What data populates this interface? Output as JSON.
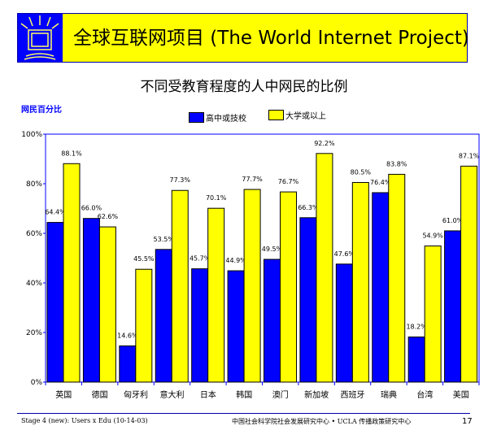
{
  "header": {
    "title": "全球互联网项目 (The World Internet Project)",
    "logo": "monitor-logo"
  },
  "footer": {
    "left": "Stage 4 (new): Users x Edu (10-14-03)",
    "center": "中国社会科学院社会发展研究中心 • UCLA 传播政策研究中心",
    "page": "17"
  },
  "chart_data": {
    "type": "bar",
    "title": "不同受教育程度的人中网民的比例",
    "ylabel": "网民百分比",
    "ylim": [
      0,
      100
    ],
    "yticks": [
      "0%",
      "20%",
      "40%",
      "60%",
      "80%",
      "100%"
    ],
    "legend_placement": "top",
    "categories": [
      "英国",
      "德国",
      "匈牙利",
      "意大利",
      "日本",
      "韩国",
      "澳门",
      "新加坡",
      "西班牙",
      "瑞典",
      "台湾",
      "美国"
    ],
    "series": [
      {
        "name": "高中或技校",
        "color": "#0000ff",
        "values": [
          64.4,
          66.0,
          14.6,
          53.5,
          45.7,
          44.9,
          49.5,
          66.3,
          47.6,
          76.4,
          18.2,
          61.0
        ]
      },
      {
        "name": "大学或以上",
        "color": "#ffff00",
        "values": [
          88.1,
          62.6,
          45.5,
          77.3,
          70.1,
          77.7,
          76.7,
          92.2,
          80.5,
          83.8,
          54.9,
          87.1
        ]
      }
    ]
  }
}
